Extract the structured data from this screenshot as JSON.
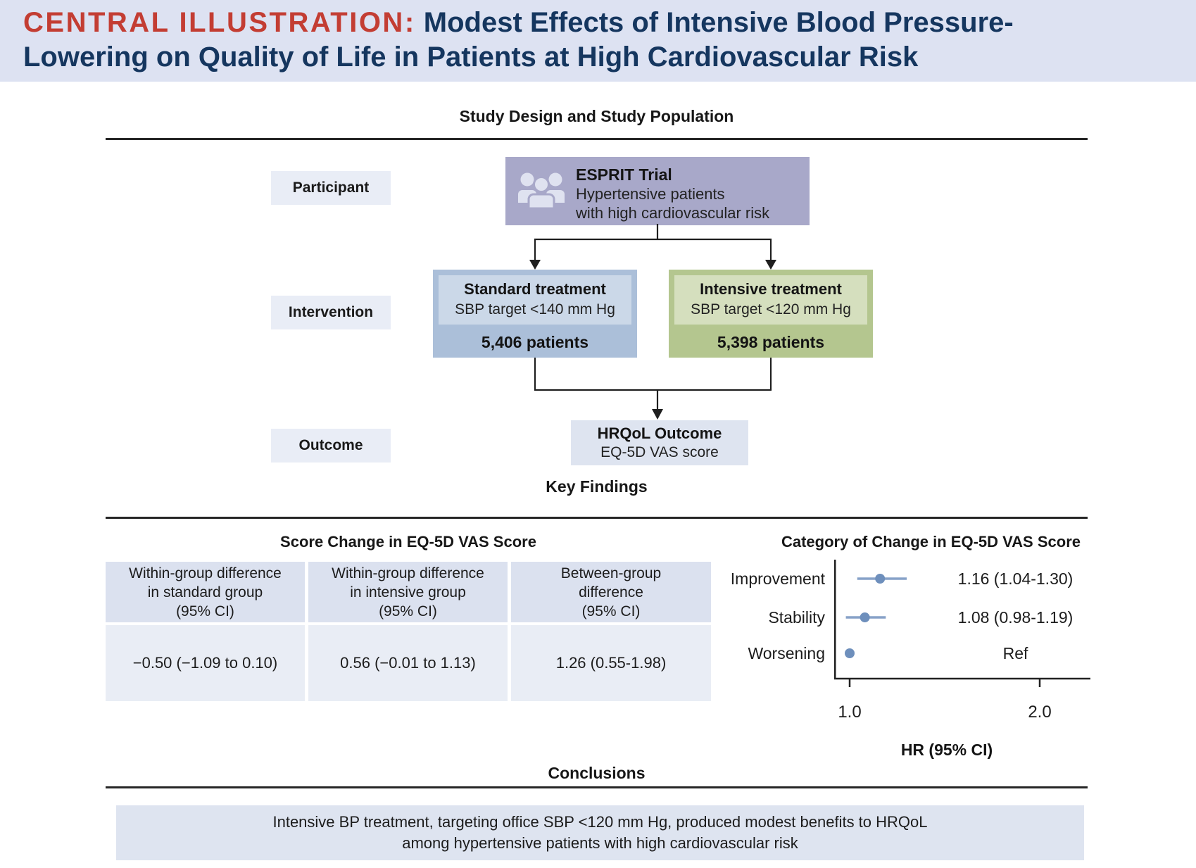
{
  "header": {
    "label": "CENTRAL ILLUSTRATION:",
    "title_line1": "Modest Effects of Intensive Blood Pressure-",
    "title_line2": "Lowering on Quality of Life in Patients at High Cardiovascular Risk"
  },
  "sections": {
    "study_design": "Study Design and Study Population",
    "key_findings": "Key Findings",
    "conclusions": "Conclusions"
  },
  "study_design": {
    "row_labels": {
      "participant": "Participant",
      "intervention": "Intervention",
      "outcome": "Outcome"
    },
    "trial_box": {
      "title": "ESPRIT Trial",
      "line1": "Hypertensive patients",
      "line2": "with high cardiovascular risk",
      "icon": "people-group-icon"
    },
    "standard_box": {
      "title": "Standard treatment",
      "target": "SBP target <140 mm Hg",
      "patients": "5,406 patients"
    },
    "intensive_box": {
      "title": "Intensive treatment",
      "target": "SBP target <120 mm Hg",
      "patients": "5,398 patients"
    },
    "outcome_box": {
      "title": "HRQoL Outcome",
      "subtitle": "EQ-5D VAS score"
    }
  },
  "key_findings": {
    "table": {
      "columns": [
        {
          "lines": [
            "Within-group difference",
            "in standard group",
            "(95% CI)"
          ]
        },
        {
          "lines": [
            "Within-group difference",
            "in intensive group",
            "(95% CI)"
          ]
        },
        {
          "lines": [
            "Between-group",
            "difference",
            "(95% CI)"
          ]
        }
      ],
      "values": [
        "−0.50 (−1.09 to 0.10)",
        "0.56 (−0.01 to 1.13)",
        "1.26 (0.55-1.98)"
      ]
    }
  },
  "conclusions_text": {
    "line1": "Intensive BP treatment, targeting office SBP <120 mm Hg, produced modest benefits to HRQoL",
    "line2": "among hypertensive patients with high cardiovascular risk"
  },
  "colors": {
    "header_bg": "#dde2f2",
    "header_label": "#c33d33",
    "header_title": "#15365f",
    "trial_box": "#a8a8c9",
    "standard_outer": "#abbfd9",
    "standard_inner": "#cbd8e8",
    "intensive_outer": "#b4c68f",
    "intensive_inner": "#d5dfbe",
    "label_box": "#e9edf6",
    "table_header_bg": "#dbe1ef",
    "table_value_bg": "#e9edf5",
    "conclusions_bg": "#dee4f0",
    "forest_point": "#6e8fbc",
    "forest_line": "#87a2c8"
  },
  "chart_data": [
    {
      "type": "table",
      "title": "Score Change in EQ-5D VAS Score",
      "columns": [
        "Within-group difference in standard group (95% CI)",
        "Within-group difference in intensive group (95% CI)",
        "Between-group difference (95% CI)"
      ],
      "rows": [
        [
          "−0.50 (−1.09 to 0.10)",
          "0.56 (−0.01 to 1.13)",
          "1.26 (0.55-1.98)"
        ]
      ]
    },
    {
      "type": "forest",
      "title": "Category of Change in EQ-5D VAS Score",
      "xlabel": "HR (95% CI)",
      "x_ticks": [
        {
          "label": "1.0",
          "value": 1.0
        },
        {
          "label": "2.0",
          "value": 2.0
        }
      ],
      "x_range": [
        0.93,
        2.25
      ],
      "rows": [
        {
          "label": "Improvement",
          "hr": 1.16,
          "ci_low": 1.04,
          "ci_high": 1.3,
          "display": "1.16 (1.04-1.30)"
        },
        {
          "label": "Stability",
          "hr": 1.08,
          "ci_low": 0.98,
          "ci_high": 1.19,
          "display": "1.08 (0.98-1.19)"
        },
        {
          "label": "Worsening",
          "hr": 1.0,
          "ci_low": null,
          "ci_high": null,
          "display": "Ref"
        }
      ],
      "point_color": "#6e8fbc",
      "line_color": "#87a2c8"
    }
  ]
}
